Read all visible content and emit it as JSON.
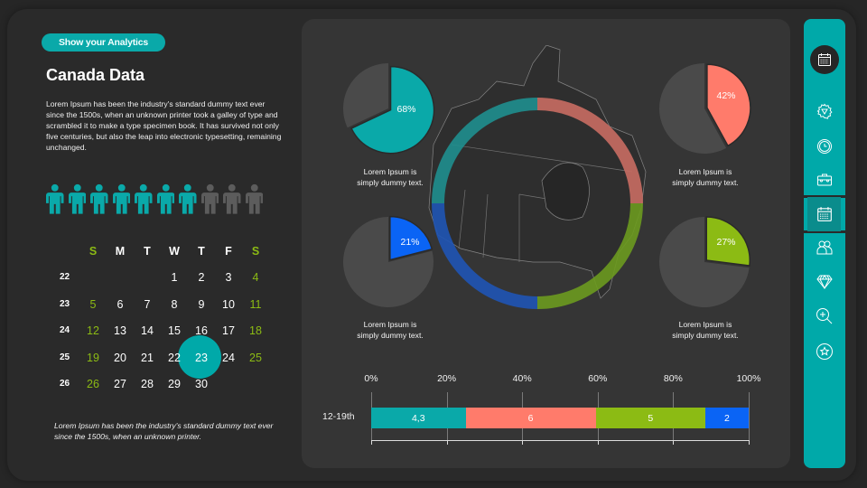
{
  "header": {
    "badge_label": "Show your Analytics",
    "title": "Canada Data",
    "description": "Lorem Ipsum has been the industry's standard dummy text ever since the 1500s, when an unknown printer took a galley of type and scrambled it to make a type specimen book. It has survived  not only five centuries, but also the leap  into electronic typesetting, remaining unchanged."
  },
  "people_icons": {
    "total": 10,
    "highlighted": 7,
    "highlight_color": "#0aa9a9",
    "muted_color": "#5c5c5c"
  },
  "calendar": {
    "day_headers": [
      "S",
      "M",
      "T",
      "W",
      "T",
      "F",
      "S"
    ],
    "weeks": [
      {
        "week": "22",
        "days": [
          "",
          "",
          "",
          "1",
          "2",
          "3",
          "4"
        ]
      },
      {
        "week": "23",
        "days": [
          "5",
          "6",
          "7",
          "8",
          "9",
          "10",
          "11"
        ]
      },
      {
        "week": "24",
        "days": [
          "12",
          "13",
          "14",
          "15",
          "16",
          "17",
          "18"
        ]
      },
      {
        "week": "25",
        "days": [
          "19",
          "20",
          "21",
          "22",
          "23",
          "24",
          "25"
        ]
      },
      {
        "week": "26",
        "days": [
          "26",
          "27",
          "28",
          "29",
          "30",
          "",
          ""
        ]
      }
    ],
    "selected_day": "23",
    "weekend_color": "#8cbb14"
  },
  "footnote": "Lorem Ipsum has been the industry's standard dummy text ever since the 1500s, when an unknown  printer.",
  "pies": [
    {
      "id": "top-left",
      "value": 68,
      "label": "68%",
      "color": "#0aa9a9",
      "caption_line1": "Lorem Ipsum is",
      "caption_line2": "simply  dummy text."
    },
    {
      "id": "top-right",
      "value": 42,
      "label": "42%",
      "color": "#ff7b6b",
      "caption_line1": "Lorem Ipsum is",
      "caption_line2": "simply  dummy text."
    },
    {
      "id": "bottom-left",
      "value": 21,
      "label": "21%",
      "color": "#0a64f5",
      "caption_line1": "Lorem Ipsum is",
      "caption_line2": "simply  dummy text."
    },
    {
      "id": "bottom-right",
      "value": 27,
      "label": "27%",
      "color": "#8cbb14",
      "caption_line1": "Lorem Ipsum is",
      "caption_line2": "simply  dummy text."
    }
  ],
  "ring_colors": [
    "#1f8f8f",
    "#c96d63",
    "#6c9a1f",
    "#1f55b5"
  ],
  "bar_chart": {
    "axis_ticks": [
      "0%",
      "20%",
      "40%",
      "60%",
      "80%",
      "100%"
    ],
    "row_label": "12-19th",
    "segments": [
      {
        "label": "4,3",
        "share": 25,
        "color": "#0aa9a9"
      },
      {
        "label": "6",
        "share": 34.5,
        "color": "#ff7b6b"
      },
      {
        "label": "5",
        "share": 29,
        "color": "#8cbb14"
      },
      {
        "label": "2",
        "share": 11.5,
        "color": "#0a64f5"
      }
    ]
  },
  "chart_data": [
    {
      "type": "pie",
      "title": "",
      "series": [
        {
          "name": "top-left",
          "values": [
            68,
            32
          ],
          "labels": [
            "68%",
            ""
          ]
        },
        {
          "name": "top-right",
          "values": [
            42,
            58
          ],
          "labels": [
            "42%",
            ""
          ]
        },
        {
          "name": "bottom-left",
          "values": [
            21,
            79
          ],
          "labels": [
            "21%",
            ""
          ]
        },
        {
          "name": "bottom-right",
          "values": [
            27,
            73
          ],
          "labels": [
            "27%",
            ""
          ]
        }
      ]
    },
    {
      "type": "bar",
      "orientation": "horizontal-stacked-100",
      "categories": [
        "12-19th"
      ],
      "series": [
        {
          "name": "segment-1",
          "values": [
            4.3
          ],
          "label": "4,3"
        },
        {
          "name": "segment-2",
          "values": [
            6
          ],
          "label": "6"
        },
        {
          "name": "segment-3",
          "values": [
            5
          ],
          "label": "5"
        },
        {
          "name": "segment-4",
          "values": [
            2
          ],
          "label": "2"
        }
      ],
      "xlabel": "",
      "ylabel": "",
      "xticks": [
        "0%",
        "20%",
        "40%",
        "60%",
        "80%",
        "100%"
      ],
      "xlim": [
        0,
        100
      ]
    }
  ],
  "sidebar": {
    "items": [
      {
        "name": "calendar-top",
        "icon": "calendar-icon"
      },
      {
        "name": "settings",
        "icon": "gear-icon"
      },
      {
        "name": "clock",
        "icon": "clock-icon"
      },
      {
        "name": "briefcase",
        "icon": "briefcase-icon"
      },
      {
        "name": "calendar",
        "icon": "calendar-icon",
        "active": true
      },
      {
        "name": "team",
        "icon": "users-icon"
      },
      {
        "name": "diamond",
        "icon": "diamond-icon"
      },
      {
        "name": "zoom-in",
        "icon": "zoom-in-icon"
      },
      {
        "name": "favorite",
        "icon": "star-icon"
      }
    ]
  }
}
